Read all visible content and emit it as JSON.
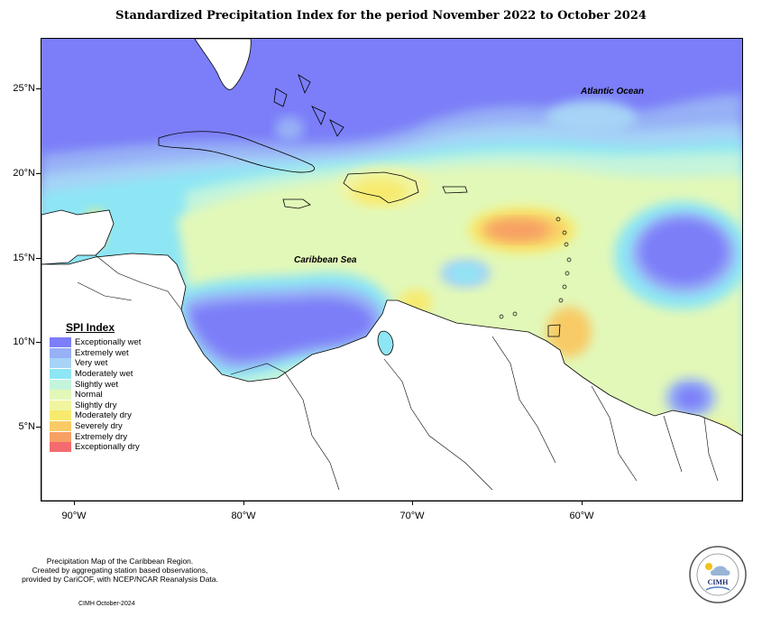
{
  "title": "Standardized Precipitation Index for the period November 2022 to October 2024",
  "map_labels": {
    "atlantic": "Atlantic Ocean",
    "caribbean": "Caribbean Sea"
  },
  "axes": {
    "lat_labels": [
      "25°N",
      "20°N",
      "15°N",
      "10°N",
      "5°N"
    ],
    "lon_labels": [
      "90°W",
      "80°W",
      "70°W",
      "60°W"
    ]
  },
  "legend": {
    "title": "SPI Index",
    "items": [
      {
        "label": "Exceptionally wet",
        "color": "#7b7ef8"
      },
      {
        "label": "Extremely wet",
        "color": "#97b0f6"
      },
      {
        "label": "Very wet",
        "color": "#a6d3f6"
      },
      {
        "label": "Moderately wet",
        "color": "#8ee6f4"
      },
      {
        "label": "Slightly wet",
        "color": "#c4f4dc"
      },
      {
        "label": "Normal",
        "color": "#e2f8b8"
      },
      {
        "label": "Slightly dry",
        "color": "#f1f5a0"
      },
      {
        "label": "Moderately dry",
        "color": "#f7ea6e"
      },
      {
        "label": "Severely dry",
        "color": "#f8cb66"
      },
      {
        "label": "Extremely dry",
        "color": "#f7a064"
      },
      {
        "label": "Exceptionally dry",
        "color": "#f36b6e"
      }
    ]
  },
  "footer": {
    "line1": "Precipitation Map of the Caribbean Region.",
    "line2": "Created by aggregating station based observations,",
    "line3": "provided by CariCOF, with NCEP/NCAR Reanalysis Data.",
    "date": "CIMH October-2024"
  },
  "logo": {
    "text": "CIMH"
  }
}
